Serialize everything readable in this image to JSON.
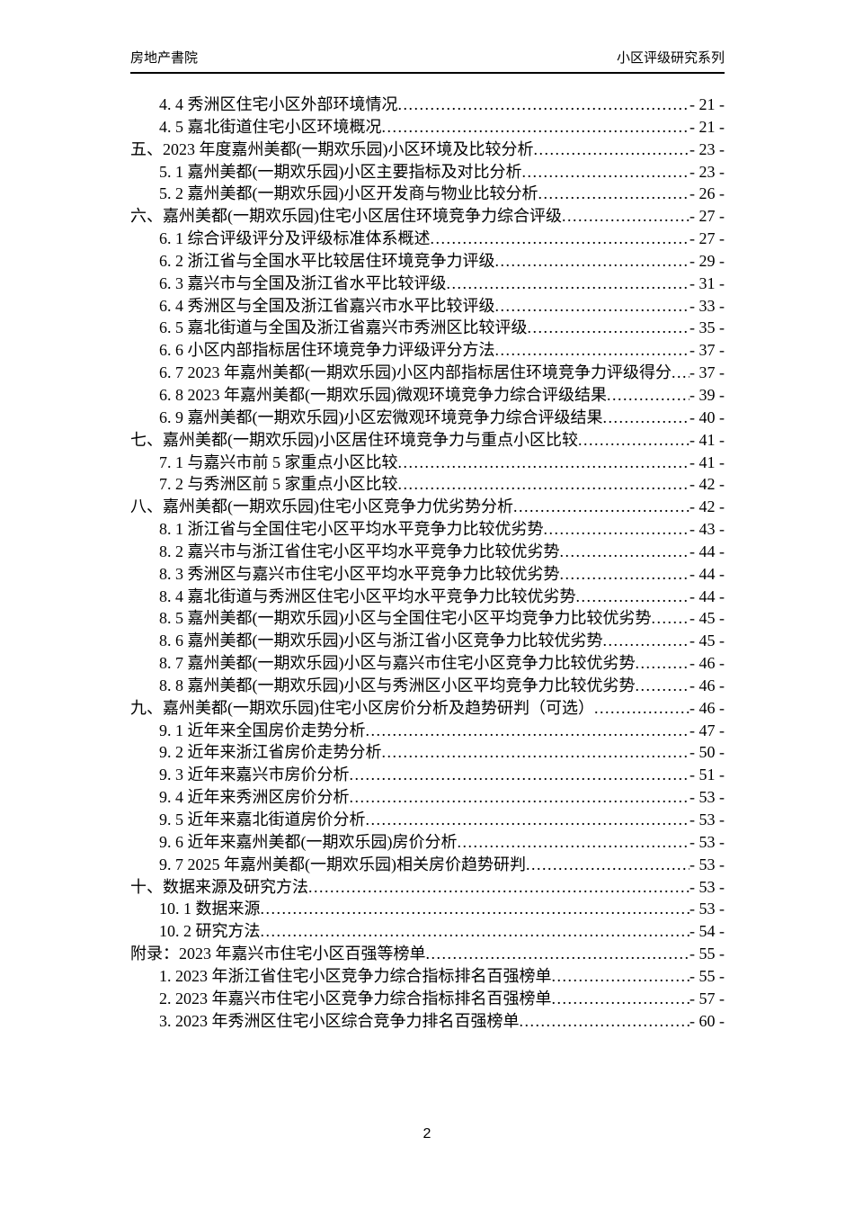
{
  "header": {
    "left": "房地产書院",
    "right": "小区评级研究系列"
  },
  "toc": {
    "entries": [
      {
        "level": 2,
        "title": "4. 4 秀洲区住宅小区外部环境情况",
        "page": "- 21 -"
      },
      {
        "level": 2,
        "title": "4. 5 嘉北街道住宅小区环境概况",
        "page": "- 21 -"
      },
      {
        "level": 1,
        "title": "五、2023 年度嘉州美都(一期欢乐园)小区环境及比较分析",
        "page": "- 23 -"
      },
      {
        "level": 2,
        "title": "5. 1 嘉州美都(一期欢乐园)小区主要指标及对比分析",
        "page": "- 23 -"
      },
      {
        "level": 2,
        "title": "5. 2 嘉州美都(一期欢乐园)小区开发商与物业比较分析",
        "page": "- 26 -"
      },
      {
        "level": 1,
        "title": "六、嘉州美都(一期欢乐园)住宅小区居住环境竞争力综合评级",
        "page": "- 27 -"
      },
      {
        "level": 2,
        "title": "6. 1 综合评级评分及评级标准体系概述",
        "page": "- 27 -"
      },
      {
        "level": 2,
        "title": "6. 2 浙江省与全国水平比较居住环境竞争力评级",
        "page": "- 29 -"
      },
      {
        "level": 2,
        "title": "6. 3 嘉兴市与全国及浙江省水平比较评级",
        "page": "- 31 -"
      },
      {
        "level": 2,
        "title": "6. 4 秀洲区与全国及浙江省嘉兴市水平比较评级",
        "page": "- 33 -"
      },
      {
        "level": 2,
        "title": "6. 5 嘉北街道与全国及浙江省嘉兴市秀洲区比较评级",
        "page": "- 35 -"
      },
      {
        "level": 2,
        "title": "6. 6 小区内部指标居住环境竞争力评级评分方法",
        "page": "- 37 -"
      },
      {
        "level": 2,
        "title": "6. 7 2023 年嘉州美都(一期欢乐园)小区内部指标居住环境竞争力评级得分",
        "page": "- 37 -"
      },
      {
        "level": 2,
        "title": "6. 8 2023 年嘉州美都(一期欢乐园)微观环境竞争力综合评级结果",
        "page": "- 39 -"
      },
      {
        "level": 2,
        "title": "6. 9 嘉州美都(一期欢乐园)小区宏微观环境竞争力综合评级结果",
        "page": "- 40 -"
      },
      {
        "level": 1,
        "title": "七、嘉州美都(一期欢乐园)小区居住环境竞争力与重点小区比较",
        "page": "- 41 -"
      },
      {
        "level": 2,
        "title": "7. 1 与嘉兴市前 5 家重点小区比较",
        "page": "- 41 -"
      },
      {
        "level": 2,
        "title": "7. 2 与秀洲区前 5 家重点小区比较",
        "page": "- 42 -"
      },
      {
        "level": 1,
        "title": "八、嘉州美都(一期欢乐园)住宅小区竞争力优劣势分析",
        "page": "- 42 -"
      },
      {
        "level": 2,
        "title": "8. 1 浙江省与全国住宅小区平均水平竞争力比较优劣势",
        "page": "- 43 -"
      },
      {
        "level": 2,
        "title": "8. 2 嘉兴市与浙江省住宅小区平均水平竞争力比较优劣势",
        "page": "- 44 -"
      },
      {
        "level": 2,
        "title": "8. 3 秀洲区与嘉兴市住宅小区平均水平竞争力比较优劣势",
        "page": "- 44 -"
      },
      {
        "level": 2,
        "title": "8. 4 嘉北街道与秀洲区住宅小区平均水平竞争力比较优劣势",
        "page": "- 44 -"
      },
      {
        "level": 2,
        "title": "8. 5 嘉州美都(一期欢乐园)小区与全国住宅小区平均竞争力比较优劣势",
        "page": "- 45 -"
      },
      {
        "level": 2,
        "title": "8. 6 嘉州美都(一期欢乐园)小区与浙江省小区竞争力比较优劣势",
        "page": "- 45 -"
      },
      {
        "level": 2,
        "title": "8. 7 嘉州美都(一期欢乐园)小区与嘉兴市住宅小区竞争力比较优劣势",
        "page": "- 46 -"
      },
      {
        "level": 2,
        "title": "8. 8 嘉州美都(一期欢乐园)小区与秀洲区小区平均竞争力比较优劣势",
        "page": "- 46 -"
      },
      {
        "level": 1,
        "title": "九、嘉州美都(一期欢乐园)住宅小区房价分析及趋势研判（可选）",
        "page": "- 46 -"
      },
      {
        "level": 2,
        "title": "9. 1 近年来全国房价走势分析",
        "page": "- 47 -"
      },
      {
        "level": 2,
        "title": "9. 2 近年来浙江省房价走势分析",
        "page": "- 50 -"
      },
      {
        "level": 2,
        "title": "9. 3 近年来嘉兴市房价分析",
        "page": "- 51 -"
      },
      {
        "level": 2,
        "title": "9. 4 近年来秀洲区房价分析",
        "page": "- 53 -"
      },
      {
        "level": 2,
        "title": "9. 5 近年来嘉北街道房价分析",
        "page": "- 53 -"
      },
      {
        "level": 2,
        "title": "9. 6 近年来嘉州美都(一期欢乐园)房价分析",
        "page": "- 53 -"
      },
      {
        "level": 2,
        "title": "9. 7 2025 年嘉州美都(一期欢乐园)相关房价趋势研判",
        "page": "- 53 -"
      },
      {
        "level": 1,
        "title": "十、数据来源及研究方法",
        "page": "- 53 -"
      },
      {
        "level": 2,
        "title": "10. 1 数据来源",
        "page": "- 53 -"
      },
      {
        "level": 2,
        "title": "10. 2 研究方法",
        "page": "- 54 -"
      },
      {
        "level": 1,
        "title": "附录：2023 年嘉兴市住宅小区百强等榜单",
        "page": "- 55 -"
      },
      {
        "level": 2,
        "title": "1. 2023 年浙江省住宅小区竞争力综合指标排名百强榜单",
        "page": "- 55 -"
      },
      {
        "level": 2,
        "title": "2. 2023 年嘉兴市住宅小区竞争力综合指标排名百强榜单",
        "page": "- 57 -"
      },
      {
        "level": 2,
        "title": "3. 2023 年秀洲区住宅小区综合竞争力排名百强榜单",
        "page": "- 60 -"
      }
    ]
  },
  "footer": {
    "page_number": "2"
  },
  "colors": {
    "text": "#000000",
    "background": "#ffffff",
    "rule": "#000000"
  }
}
